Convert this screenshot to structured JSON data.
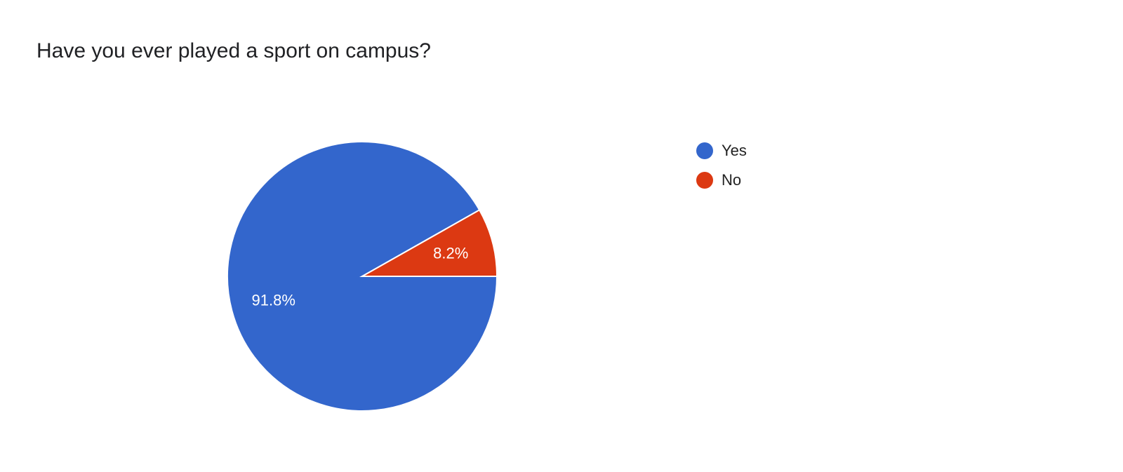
{
  "chart_data": {
    "type": "pie",
    "title": "Have you ever played a sport on campus?",
    "categories": [
      "Yes",
      "No"
    ],
    "values": [
      91.8,
      8.2
    ],
    "labels": [
      "91.8%",
      "8.2%"
    ],
    "colors": [
      "#3366cc",
      "#dc3912"
    ],
    "legend": "right"
  }
}
